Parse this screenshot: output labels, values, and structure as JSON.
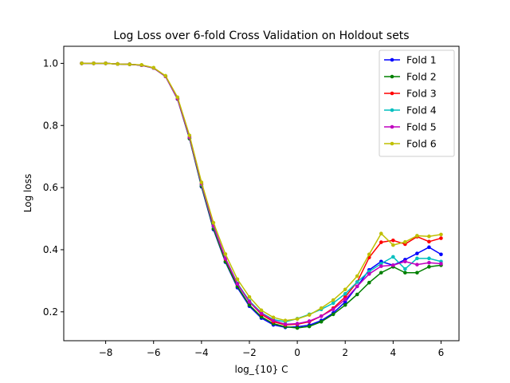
{
  "chart_data": {
    "type": "line",
    "title": "Log Loss over 6-fold Cross Validation on Holdout sets",
    "xlabel": "log_{10} C",
    "ylabel": "Log loss",
    "xlim": [
      -9.75,
      6.75
    ],
    "ylim": [
      0.107,
      1.055
    ],
    "xticks": [
      -8,
      -6,
      -4,
      -2,
      0,
      2,
      4,
      6
    ],
    "xtick_labels": [
      "−8",
      "−6",
      "−4",
      "−2",
      "0",
      "2",
      "4",
      "6"
    ],
    "yticks": [
      0.2,
      0.4,
      0.6,
      0.8,
      1.0
    ],
    "ytick_labels": [
      "0.2",
      "0.4",
      "0.6",
      "0.8",
      "1.0"
    ],
    "grid": false,
    "legend_position": "top-right",
    "x": [
      -9.0,
      -8.5,
      -8.0,
      -7.5,
      -7.0,
      -6.5,
      -6.0,
      -5.5,
      -5.0,
      -4.5,
      -4.0,
      -3.5,
      -3.0,
      -2.5,
      -2.0,
      -1.5,
      -1.0,
      -0.5,
      0.0,
      0.5,
      1.0,
      1.5,
      2.0,
      2.5,
      3.0,
      3.5,
      4.0,
      4.5,
      5.0,
      5.5,
      6.0
    ],
    "series": [
      {
        "name": "Fold 1",
        "color": "#0000ff",
        "values": [
          1.0,
          1.0,
          1.0,
          0.998,
          0.997,
          0.994,
          0.985,
          0.958,
          0.885,
          0.758,
          0.603,
          0.465,
          0.36,
          0.278,
          0.218,
          0.18,
          0.158,
          0.15,
          0.152,
          0.157,
          0.172,
          0.196,
          0.232,
          0.282,
          0.335,
          0.362,
          0.35,
          0.368,
          0.388,
          0.408,
          0.385
        ]
      },
      {
        "name": "Fold 2",
        "color": "#008000",
        "values": [
          1.0,
          1.0,
          1.0,
          0.998,
          0.997,
          0.994,
          0.985,
          0.958,
          0.885,
          0.758,
          0.605,
          0.468,
          0.362,
          0.282,
          0.222,
          0.184,
          0.162,
          0.152,
          0.148,
          0.153,
          0.168,
          0.192,
          0.222,
          0.256,
          0.294,
          0.326,
          0.345,
          0.326,
          0.326,
          0.345,
          0.35
        ]
      },
      {
        "name": "Fold 3",
        "color": "#ff0000",
        "values": [
          1.0,
          1.0,
          1.0,
          0.998,
          0.997,
          0.994,
          0.985,
          0.958,
          0.886,
          0.762,
          0.61,
          0.475,
          0.37,
          0.29,
          0.232,
          0.192,
          0.168,
          0.158,
          0.16,
          0.168,
          0.186,
          0.212,
          0.248,
          0.296,
          0.375,
          0.424,
          0.43,
          0.418,
          0.442,
          0.426,
          0.437
        ]
      },
      {
        "name": "Fold 4",
        "color": "#00bfbf",
        "values": [
          1.0,
          1.0,
          1.0,
          0.998,
          0.997,
          0.994,
          0.985,
          0.958,
          0.886,
          0.762,
          0.61,
          0.475,
          0.372,
          0.292,
          0.235,
          0.197,
          0.175,
          0.168,
          0.178,
          0.192,
          0.208,
          0.228,
          0.258,
          0.296,
          0.33,
          0.355,
          0.377,
          0.338,
          0.372,
          0.372,
          0.362
        ]
      },
      {
        "name": "Fold 5",
        "color": "#bf00bf",
        "values": [
          1.0,
          1.0,
          1.0,
          0.998,
          0.997,
          0.994,
          0.985,
          0.958,
          0.886,
          0.762,
          0.612,
          0.477,
          0.372,
          0.29,
          0.232,
          0.195,
          0.172,
          0.16,
          0.162,
          0.17,
          0.186,
          0.208,
          0.24,
          0.282,
          0.322,
          0.347,
          0.35,
          0.362,
          0.352,
          0.358,
          0.355
        ]
      },
      {
        "name": "Fold 6",
        "color": "#bfbf00",
        "values": [
          1.0,
          1.0,
          1.0,
          0.998,
          0.997,
          0.995,
          0.986,
          0.96,
          0.891,
          0.768,
          0.617,
          0.487,
          0.386,
          0.305,
          0.248,
          0.205,
          0.182,
          0.172,
          0.177,
          0.19,
          0.212,
          0.238,
          0.272,
          0.315,
          0.385,
          0.452,
          0.415,
          0.425,
          0.445,
          0.443,
          0.449
        ]
      }
    ]
  }
}
